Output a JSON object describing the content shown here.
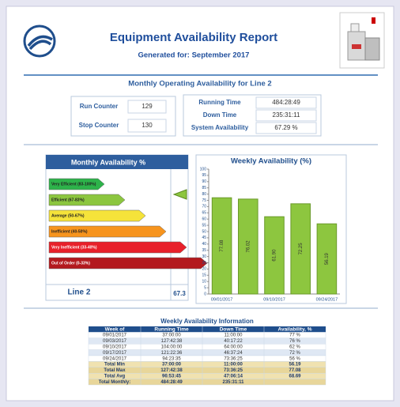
{
  "header": {
    "title": "Equipment Availability Report",
    "subtitle": "Generated for: September 2017"
  },
  "section_title": "Monthly Operating Availability for  Line 2",
  "counters": [
    {
      "label": "Run Counter",
      "value": 129
    },
    {
      "label": "Stop Counter",
      "value": 130
    }
  ],
  "times": [
    {
      "label": "Running Time",
      "value": "484:28:49"
    },
    {
      "label": "Down Time",
      "value": "235:31:11"
    },
    {
      "label": "System Availability",
      "value": "67.29 %"
    }
  ],
  "monthly": {
    "title": "Monthly Availability %",
    "levels": [
      {
        "label": "Very Efficient (83-100%)",
        "color": "#2db34a"
      },
      {
        "label": "Efficient (67-83%)",
        "color": "#8cc63f"
      },
      {
        "label": "Average (50-67%)",
        "color": "#f5e33a"
      },
      {
        "label": "Inefficient (40-50%)",
        "color": "#f7941d"
      },
      {
        "label": "Very Inefficient (33-40%)",
        "color": "#e8202a"
      },
      {
        "label": "Out of Order (0-33%)",
        "color": "#b3191e"
      }
    ],
    "line": "Line 2",
    "value": 67.3
  },
  "chart_data": {
    "type": "bar",
    "title": "Weekly Availability (%)",
    "categories": [
      "09/01/2017",
      null,
      "09/10/2017",
      null,
      "09/24/2017"
    ],
    "values": [
      77.08,
      76.02,
      61.9,
      72.25,
      56.19
    ],
    "value_labels": [
      "77.08",
      "76.02",
      "61.90",
      "72.25",
      "56.19"
    ],
    "color": "#8dc63f",
    "ylim": [
      0,
      100
    ],
    "yticks": [
      0,
      5,
      10,
      15,
      20,
      25,
      30,
      35,
      40,
      45,
      50,
      55,
      60,
      65,
      70,
      75,
      80,
      85,
      90,
      95,
      100
    ],
    "grid": false
  },
  "table": {
    "title": "Weekly Availability Information",
    "columns": [
      "Week of",
      "Running Time",
      "Down Time",
      "Availability, %"
    ],
    "rows": [
      [
        "09/01/2017",
        "37:00:00",
        "11:00:00",
        "77 %"
      ],
      [
        "09/03/2017",
        "127:42:38",
        "40:17:22",
        "76 %"
      ],
      [
        "09/10/2017",
        "104:00:00",
        "64:00:00",
        "62 %"
      ],
      [
        "09/17/2017",
        "121:22:36",
        "46:37:24",
        "72 %"
      ],
      [
        "09/24/2017",
        "94:23:35",
        "73:36:25",
        "56 %"
      ],
      [
        "Total Min",
        "37:00:00",
        "11:00:00",
        "56.19"
      ],
      [
        "Total Max",
        "127:42:38",
        "73:36:25",
        "77.08"
      ],
      [
        "Total Avg",
        "96:53:45",
        "47:06:14",
        "68.69"
      ],
      [
        "Total Monthly:",
        "484:28:49",
        "235:31:11"
      ]
    ]
  }
}
